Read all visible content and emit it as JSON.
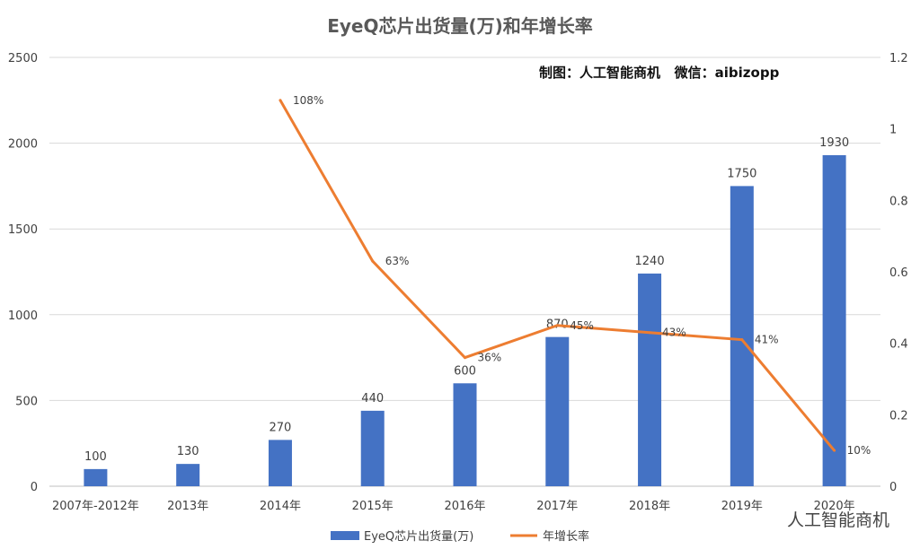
{
  "chart_data": {
    "type": "bar+line",
    "title": "EyeQ芯片出货量(万)和年增长率",
    "annotation": "制图：人工智能商机   微信：aibizopp",
    "watermark": "人工智能商机",
    "categories": [
      "2007年-2012年",
      "2013年",
      "2014年",
      "2015年",
      "2016年",
      "2017年",
      "2018年",
      "2019年",
      "2020年"
    ],
    "series": [
      {
        "name": "EyeQ芯片出货量(万)",
        "type": "bar",
        "axis": "left",
        "color": "#4472C4",
        "values": [
          100,
          130,
          270,
          440,
          600,
          870,
          1240,
          1750,
          1930
        ],
        "labels": [
          "100",
          "130",
          "270",
          "440",
          "600",
          "870",
          "1240",
          "1750",
          "1930"
        ]
      },
      {
        "name": "年增长率",
        "type": "line",
        "axis": "right",
        "color": "#ED7D31",
        "values": [
          null,
          null,
          1.08,
          0.63,
          0.36,
          0.45,
          0.43,
          0.41,
          0.1
        ],
        "labels": [
          "",
          "",
          "108%",
          "63%",
          "36%",
          "45%",
          "43%",
          "41%",
          "10%"
        ]
      }
    ],
    "left_axis": {
      "range": [
        0,
        2500
      ],
      "ticks": [
        "0",
        "500",
        "1000",
        "1500",
        "2000",
        "2500"
      ]
    },
    "right_axis": {
      "range": [
        0,
        1.2
      ],
      "ticks": [
        "0",
        "0.2",
        "0.4",
        "0.6",
        "0.8",
        "1",
        "1.2"
      ]
    },
    "grid": true,
    "legend_position": "bottom"
  }
}
